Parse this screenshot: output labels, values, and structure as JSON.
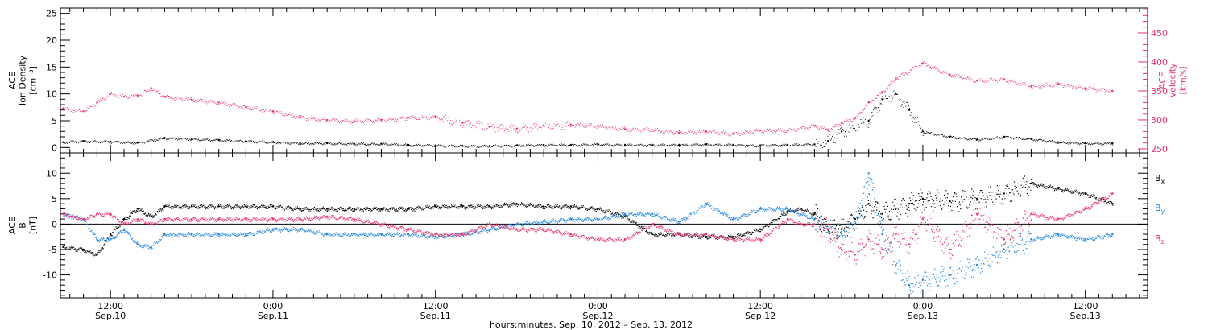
{
  "colors": {
    "black": "#000000",
    "red": "#e8356b",
    "blue": "#1c84e0"
  },
  "x_axis": {
    "tick_labels": [
      {
        "time": "12:00",
        "date": "Sep.10",
        "hours": 12
      },
      {
        "time": "0:00",
        "date": "Sep.11",
        "hours": 24
      },
      {
        "time": "12:00",
        "date": "Sep.11",
        "hours": 36
      },
      {
        "time": "0:00",
        "date": "Sep.12",
        "hours": 48
      },
      {
        "time": "12:00",
        "date": "Sep.12",
        "hours": 60
      },
      {
        "time": "0:00",
        "date": "Sep.13",
        "hours": 72
      },
      {
        "time": "12:00",
        "date": "Sep.13",
        "hours": 84
      }
    ],
    "title": "hours:minutes, Sep. 10, 2012 – Sep. 13, 2012",
    "range_hours": [
      8.3,
      88.6
    ]
  },
  "chart_data": [
    {
      "type": "scatter",
      "panel": "top",
      "ylabel_left": [
        "ACE",
        "Ion Density",
        "[cm⁻³]"
      ],
      "ylabel_right": [
        "ACE",
        "Velocity",
        "[km/s]"
      ],
      "yticks_left": [
        "0",
        "5",
        "10",
        "15",
        "20",
        "25"
      ],
      "yticks_right": [
        "250",
        "300",
        "350",
        "400",
        "450"
      ],
      "ylim_left": [
        -1,
        26
      ],
      "ylim_right": [
        243,
        493
      ],
      "series": [
        {
          "name": "Ion Density",
          "color": "black",
          "axis": "left",
          "x": [
            8.5,
            10,
            12,
            14,
            16,
            18,
            20,
            22,
            24,
            26,
            28,
            30,
            32,
            34,
            36,
            38,
            40,
            42,
            44,
            46,
            48,
            50,
            52,
            54,
            56,
            58,
            59,
            60,
            62,
            64,
            65,
            66,
            68,
            69,
            70,
            71,
            72,
            74,
            76,
            78,
            80,
            82,
            84,
            86
          ],
          "y": [
            1,
            1.2,
            1.1,
            0.9,
            1.8,
            1.6,
            1.4,
            1.2,
            1,
            0.8,
            0.8,
            0.7,
            0.7,
            0.5,
            0.4,
            0.3,
            0.3,
            0.4,
            0.5,
            0.5,
            0.6,
            0.5,
            0.5,
            0.5,
            0.6,
            0.5,
            0.4,
            0.4,
            0.5,
            0.6,
            1.2,
            3,
            5,
            9,
            10,
            7,
            3,
            2,
            1.5,
            2,
            1.6,
            1,
            0.8,
            0.8
          ]
        },
        {
          "name": "Velocity",
          "color": "red",
          "axis": "right",
          "x": [
            8.5,
            10,
            11,
            12,
            13,
            14,
            15,
            16,
            18,
            20,
            22,
            24,
            26,
            28,
            30,
            32,
            34,
            36,
            38,
            40,
            42,
            44,
            46,
            48,
            50,
            52,
            54,
            56,
            58,
            60,
            62,
            64,
            65,
            66,
            67,
            68,
            69,
            70,
            72,
            74,
            76,
            78,
            80,
            82,
            84,
            86
          ],
          "y": [
            320,
            315,
            330,
            345,
            340,
            342,
            355,
            340,
            335,
            330,
            322,
            315,
            305,
            300,
            298,
            300,
            304,
            305,
            295,
            288,
            285,
            290,
            292,
            290,
            284,
            283,
            278,
            280,
            276,
            282,
            282,
            290,
            283,
            295,
            303,
            330,
            348,
            372,
            398,
            378,
            368,
            370,
            358,
            362,
            355,
            350
          ]
        }
      ]
    },
    {
      "type": "line",
      "panel": "bottom",
      "ylabel": [
        "ACE",
        "B",
        "[nT]"
      ],
      "yticks": [
        "-10",
        "-5",
        "0",
        "5",
        "10"
      ],
      "ylim": [
        -14.5,
        14
      ],
      "legend": [
        {
          "label": "B",
          "sub": "x",
          "color": "black"
        },
        {
          "label": "B",
          "sub": "y",
          "color": "blue"
        },
        {
          "label": "B",
          "sub": "z",
          "color": "red"
        }
      ],
      "legend_position": "right-outside",
      "series": [
        {
          "name": "Bx",
          "color": "black",
          "x": [
            8.5,
            10,
            11,
            12,
            13,
            14,
            15,
            16,
            18,
            20,
            22,
            24,
            26,
            28,
            30,
            32,
            34,
            36,
            38,
            40,
            42,
            44,
            46,
            48,
            50,
            52,
            54,
            56,
            58,
            60,
            62,
            63,
            64,
            65,
            66,
            67,
            68,
            69,
            70,
            71,
            72,
            74,
            76,
            78,
            80,
            82,
            84,
            86
          ],
          "y": [
            -4.5,
            -5,
            -6,
            -2,
            1,
            3,
            1.5,
            3.5,
            3.5,
            3.5,
            3.5,
            3.5,
            3,
            3,
            3,
            3,
            3,
            3.5,
            3.5,
            3.5,
            4,
            3.5,
            3.5,
            3,
            1.5,
            -2,
            -2,
            -2.5,
            -2.5,
            -1,
            2.5,
            3,
            2,
            -1,
            -1,
            1,
            4,
            2,
            3,
            4,
            5,
            4.5,
            5,
            6,
            8,
            7,
            6,
            4
          ]
        },
        {
          "name": "By",
          "color": "blue",
          "x": [
            8.5,
            10,
            11,
            12,
            13,
            14,
            15,
            16,
            18,
            20,
            22,
            24,
            26,
            28,
            30,
            32,
            34,
            36,
            38,
            40,
            42,
            44,
            46,
            48,
            50,
            52,
            54,
            56,
            58,
            60,
            62,
            64,
            65,
            66,
            67,
            68,
            69,
            70,
            71,
            72,
            74,
            76,
            78,
            80,
            82,
            84,
            86
          ],
          "y": [
            2,
            1,
            -3,
            -3,
            -1,
            -4,
            -4.5,
            -2,
            -2,
            -2,
            -2,
            -1,
            -1,
            -2,
            -2,
            -2,
            -2,
            -2.5,
            -2,
            -1,
            0,
            0.5,
            1,
            1,
            2,
            2,
            0.5,
            4,
            1,
            3,
            3,
            1,
            -1,
            -2,
            0,
            10,
            -2,
            -8,
            -12,
            -11,
            -10,
            -8,
            -5,
            -3,
            -2,
            -3,
            -2
          ]
        },
        {
          "name": "Bz",
          "color": "red",
          "x": [
            8.5,
            10,
            11,
            12,
            13,
            14,
            15,
            16,
            18,
            20,
            22,
            24,
            26,
            28,
            30,
            32,
            34,
            36,
            38,
            40,
            42,
            44,
            46,
            48,
            50,
            52,
            54,
            56,
            58,
            60,
            62,
            63,
            64,
            65,
            66,
            67,
            68,
            69,
            70,
            71,
            72,
            74,
            76,
            78,
            80,
            82,
            84,
            86
          ],
          "y": [
            2,
            1,
            2,
            2,
            0,
            1,
            0,
            1,
            1,
            1,
            1,
            1,
            1,
            1.5,
            1,
            0,
            -1,
            -2,
            -2,
            0,
            -1,
            -1,
            -2,
            -3,
            -3,
            0,
            -2,
            -2,
            -3,
            -3,
            1,
            0,
            0,
            -1,
            -5,
            -6,
            -3,
            -5,
            -2,
            -4,
            1,
            -5,
            2,
            -3,
            2,
            1,
            3,
            6
          ]
        }
      ]
    }
  ]
}
